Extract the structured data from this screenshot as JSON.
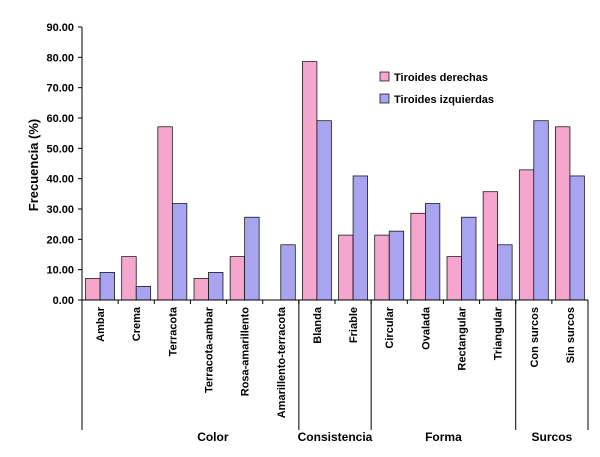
{
  "chart_data": {
    "type": "bar",
    "ylabel": "Frecuencia (%)",
    "ylim": [
      0,
      90
    ],
    "yticks": [
      "0.00",
      "10.00",
      "20.00",
      "30.00",
      "40.00",
      "50.00",
      "60.00",
      "70.00",
      "80.00",
      "90.00"
    ],
    "legend_position": "top-right",
    "grid": false,
    "categories": [
      "Ambar",
      "Crema",
      "Terracota",
      "Terracota-ambar",
      "Rosa-amarillento",
      "Amarillento-terracota",
      "Blanda",
      "Friable",
      "Circular",
      "Ovalada",
      "Rectangular",
      "Triangular",
      "Con surcos",
      "Sin surcos"
    ],
    "groups": [
      {
        "label": "Color",
        "count": 6
      },
      {
        "label": "Consistencia",
        "count": 2
      },
      {
        "label": "Forma",
        "count": 4
      },
      {
        "label": "Surcos",
        "count": 2
      }
    ],
    "series": [
      {
        "name": "Tiroides derechas",
        "color": "#f4a6cc",
        "values": [
          7.1,
          14.3,
          57.1,
          7.1,
          14.3,
          0,
          78.6,
          21.4,
          21.4,
          28.6,
          14.3,
          35.7,
          42.9,
          57.1
        ]
      },
      {
        "name": "Tiroides izquierdas",
        "color": "#a8a4f0",
        "values": [
          9.1,
          4.5,
          31.8,
          9.1,
          27.3,
          18.2,
          59.1,
          40.9,
          22.7,
          31.8,
          27.3,
          18.2,
          59.1,
          40.9
        ]
      }
    ]
  }
}
